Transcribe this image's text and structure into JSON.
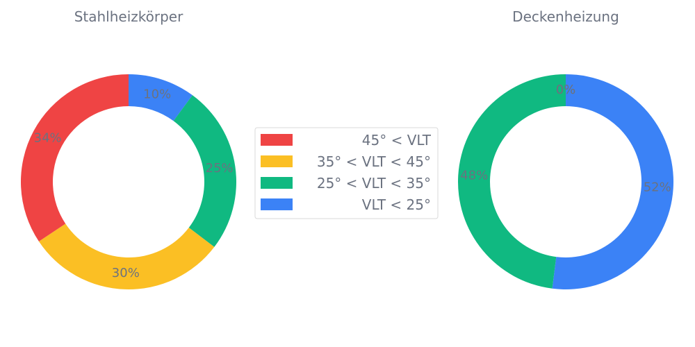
{
  "palette": {
    "45° < VLT": "#ef4444",
    "35° < VLT < 45°": "#fbbf24",
    "25° < VLT < 35°": "#10b981",
    "VLT < 25°": "#3b82f6"
  },
  "legend": {
    "placement": "center",
    "entries": [
      {
        "label": "45° < VLT",
        "color": "#ef4444"
      },
      {
        "label": "35° < VLT < 45°",
        "color": "#fbbf24"
      },
      {
        "label": "25° < VLT < 35°",
        "color": "#10b981"
      },
      {
        "label": "VLT < 25°",
        "color": "#3b82f6"
      }
    ]
  },
  "chart_data": [
    {
      "type": "pie",
      "variant": "donut",
      "title": "Stahlheizkörper",
      "start": "top",
      "direction": "clockwise",
      "slices": [
        {
          "label": "VLT < 25°",
          "value": 10,
          "display": "10%",
          "color": "#3b82f6"
        },
        {
          "label": "25° < VLT < 35°",
          "value": 25,
          "display": "25%",
          "color": "#10b981"
        },
        {
          "label": "35° < VLT < 45°",
          "value": 30,
          "display": "30%",
          "color": "#fbbf24"
        },
        {
          "label": "45° < VLT",
          "value": 34,
          "display": "34%",
          "color": "#ef4444"
        }
      ]
    },
    {
      "type": "pie",
      "variant": "donut",
      "title": "Deckenheizung",
      "start": "top",
      "direction": "clockwise",
      "slices": [
        {
          "label": "VLT < 25°",
          "value": 52,
          "display": "52%",
          "color": "#3b82f6"
        },
        {
          "label": "25° < VLT < 35°",
          "value": 48,
          "display": "48%",
          "color": "#10b981"
        },
        {
          "label": "35° < VLT < 45°",
          "value": 0,
          "display": "0%",
          "color": "#fbbf24"
        },
        {
          "label": "45° < VLT",
          "value": 0,
          "display": "0%",
          "color": "#ef4444"
        }
      ]
    }
  ]
}
